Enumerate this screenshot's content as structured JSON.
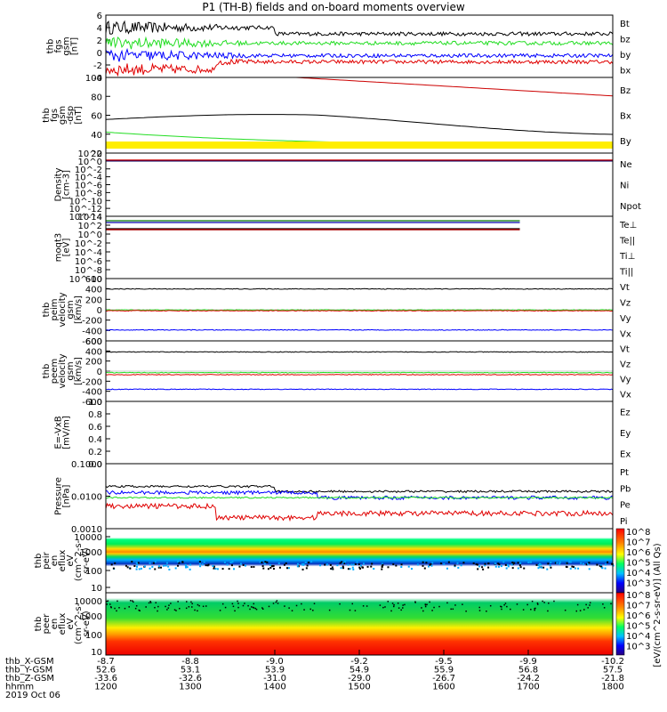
{
  "title": "P1 (TH-B) fields and on-board moments overview",
  "date_label": "2019 Oct 06",
  "colorbar_label": "[eV/(cm^2-s-sr-eV)] (All Qs)",
  "colorbar_ticks": [
    "10^8",
    "10^7",
    "10^6",
    "10^5",
    "10^4",
    "10^3"
  ],
  "colorbar_ticks_lower": [
    "10^8",
    "10^7",
    "10^6",
    "10^5",
    "10^4",
    "10^3"
  ],
  "chart_data": [
    {
      "type": "line",
      "ylabel": [
        "thb",
        "fgs",
        "gsm",
        "[nT]"
      ],
      "ylim": [
        -4,
        6
      ],
      "yticks": [
        "6",
        "4",
        "2",
        "0",
        "-2",
        "-4"
      ],
      "legend": [
        {
          "name": "Bt",
          "color": "#000000"
        },
        {
          "name": "bz",
          "color": "#e00000"
        },
        {
          "name": "by",
          "color": "#00cc00"
        },
        {
          "name": "bx",
          "color": "#0000ff"
        }
      ],
      "series": [
        {
          "name": "Bt",
          "color": "#000000",
          "level": 3.0
        },
        {
          "name": "bz",
          "color": "#e00000",
          "level": -1.5
        },
        {
          "name": "by",
          "color": "#22dd22",
          "level": 1.5
        },
        {
          "name": "bx",
          "color": "#0000ff",
          "level": -0.5
        }
      ]
    },
    {
      "type": "line",
      "ylabel": [
        "thb",
        "fgs",
        "gsm",
        "-dsp",
        "[nT]"
      ],
      "ylim": [
        10,
        100
      ],
      "yticks": [
        "100",
        "80",
        "60",
        "40",
        "20"
      ],
      "legend": [
        {
          "name": "Bz",
          "color": "#e00000"
        },
        {
          "name": "Bx",
          "color": "#000000"
        },
        {
          "name": "By",
          "color": "#00cc00"
        }
      ],
      "series": [
        {
          "name": "Bz",
          "color": "#cc0000",
          "x0": 1425,
          "x1": 1800,
          "y0": 100,
          "y1": 78
        },
        {
          "name": "Bx",
          "color": "#000000",
          "x0": 1200,
          "x1": 1800,
          "y0": 50,
          "y1": 38
        },
        {
          "name": "By",
          "color": "#22dd22",
          "x0": 1200,
          "x1": 1800,
          "y0": 35,
          "y1": 17
        }
      ]
    },
    {
      "type": "line",
      "ylabel": [
        "Density",
        "[cm-3]"
      ],
      "yticks": [
        "10^2",
        "10^0",
        "10^-2",
        "10^-4",
        "10^-6",
        "10^-8",
        "10^-10",
        "10^-12",
        "10^-14"
      ],
      "legend": [
        {
          "name": "Ne",
          "color": "#e00000"
        },
        {
          "name": "Ni",
          "color": "#000000"
        },
        {
          "name": "Npot",
          "color": "#0000ff"
        }
      ]
    },
    {
      "type": "line",
      "ylabel": [
        "moqt3",
        "[eV]"
      ],
      "yticks": [
        "10^4",
        "10^2",
        "10^0",
        "10^-2",
        "10^-4",
        "10^-6",
        "10^-8",
        "10^-10"
      ],
      "legend": [
        {
          "name": "Te⊥",
          "color": "#e00000"
        },
        {
          "name": "Te||",
          "color": "#000000"
        },
        {
          "name": "Ti⊥",
          "color": "#0000ff"
        },
        {
          "name": "Ti||",
          "color": "#00cc00"
        }
      ]
    },
    {
      "type": "line",
      "ylabel": [
        "thb",
        "peim",
        "velocity",
        "gsm",
        "[km/s]"
      ],
      "ylim": [
        -600,
        600
      ],
      "yticks": [
        "600",
        "400",
        "200",
        "0",
        "-200",
        "-400",
        "-600"
      ],
      "legend": [
        {
          "name": "Vt",
          "color": "#000000"
        },
        {
          "name": "Vz",
          "color": "#e00000"
        },
        {
          "name": "Vy",
          "color": "#00cc00"
        },
        {
          "name": "Vx",
          "color": "#0000ff"
        }
      ],
      "series": [
        {
          "name": "Vt",
          "color": "#000000",
          "level": 400
        },
        {
          "name": "Vy",
          "color": "#22dd22",
          "level": -5
        },
        {
          "name": "Vz",
          "color": "#e00000",
          "level": -20
        },
        {
          "name": "Vx",
          "color": "#0000ff",
          "level": -390
        }
      ]
    },
    {
      "type": "line",
      "ylabel": [
        "thb",
        "peem",
        "velocity",
        "gsm",
        "[km/s]"
      ],
      "ylim": [
        -600,
        600
      ],
      "yticks": [
        "600",
        "400",
        "200",
        "0",
        "-200",
        "-400",
        "-600"
      ],
      "legend": [
        {
          "name": "Vt",
          "color": "#000000"
        },
        {
          "name": "Vz",
          "color": "#e00000"
        },
        {
          "name": "Vy",
          "color": "#00cc00"
        },
        {
          "name": "Vx",
          "color": "#0000ff"
        }
      ],
      "series": [
        {
          "name": "Vt",
          "color": "#000000",
          "level": 380
        },
        {
          "name": "Vy",
          "color": "#22dd22",
          "level": -30
        },
        {
          "name": "Vz",
          "color": "#e00000",
          "level": -70
        },
        {
          "name": "Vx",
          "color": "#0000ff",
          "level": -360
        }
      ]
    },
    {
      "type": "line",
      "ylabel": [
        "E=-VxB",
        "[mV/m]"
      ],
      "ylim": [
        0,
        1
      ],
      "yticks": [
        "1.0",
        "0.8",
        "0.6",
        "0.4",
        "0.2",
        "0.0"
      ],
      "legend": [
        {
          "name": "Ez",
          "color": "#e00000"
        },
        {
          "name": "Ey",
          "color": "#00cc00"
        },
        {
          "name": "Ex",
          "color": "#0000ff"
        }
      ]
    },
    {
      "type": "line",
      "ylabel": [
        "Pressure",
        "[nPa]"
      ],
      "yticks": [
        "0.1000",
        "0.0100",
        "0.0010"
      ],
      "legend": [
        {
          "name": "Pt",
          "color": "#000000"
        },
        {
          "name": "Pb",
          "color": "#e00000"
        },
        {
          "name": "Pe",
          "color": "#00cc00"
        },
        {
          "name": "Pi",
          "color": "#0000ff"
        }
      ]
    },
    {
      "type": "heatmap",
      "ylabel": [
        "thb",
        "peir",
        "en",
        "eflux",
        "eV",
        "(cm^2-s-",
        "sr-eV)"
      ],
      "yticks": [
        "10000",
        "1000",
        "100",
        "10"
      ]
    },
    {
      "type": "heatmap",
      "ylabel": [
        "thb",
        "peer",
        "en",
        "eflux",
        "eV",
        "(cm^2-s-",
        "sr-eV)"
      ],
      "yticks": [
        "10000",
        "1000",
        "100",
        "10"
      ]
    }
  ],
  "x_axis": {
    "rows": [
      {
        "label": "thb_X-GSM",
        "values": [
          "-8.7",
          "-8.8",
          "-9.0",
          "-9.2",
          "-9.5",
          "-9.9",
          "-10.2"
        ]
      },
      {
        "label": "thb_Y-GSM",
        "values": [
          "52.6",
          "53.1",
          "53.9",
          "54.9",
          "55.9",
          "56.8",
          "57.5"
        ]
      },
      {
        "label": "thb_Z-GSM",
        "values": [
          "-33.6",
          "-32.6",
          "-31.0",
          "-29.0",
          "-26.7",
          "-24.2",
          "-21.8"
        ]
      },
      {
        "label": "hhmm",
        "values": [
          "1200",
          "1300",
          "1400",
          "1500",
          "1600",
          "1700",
          "1800"
        ]
      }
    ]
  }
}
